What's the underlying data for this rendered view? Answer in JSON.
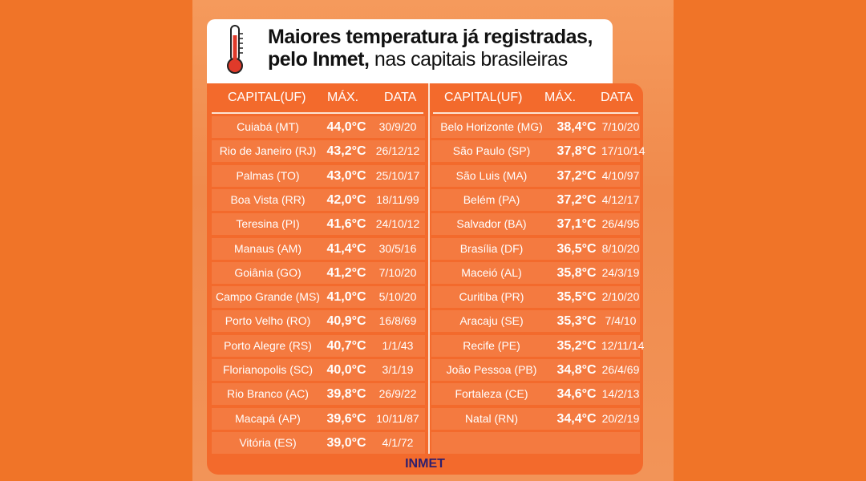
{
  "title": {
    "line1_bold": "Maiores temperatura já registradas,",
    "line2_bold": "pelo Inmet,",
    "line2_rest": " nas capitais brasileiras"
  },
  "headers": {
    "capital": "CAPITAL(UF)",
    "max": "MÁX.",
    "date": "DATA"
  },
  "left_rows": [
    {
      "capital": "Cuiabá (MT)",
      "max": "44,0°C",
      "date": "30/9/20"
    },
    {
      "capital": "Rio de Janeiro (RJ)",
      "max": "43,2°C",
      "date": "26/12/12"
    },
    {
      "capital": "Palmas (TO)",
      "max": "43,0°C",
      "date": "25/10/17"
    },
    {
      "capital": "Boa Vista (RR)",
      "max": "42,0°C",
      "date": "18/11/99"
    },
    {
      "capital": "Teresina (PI)",
      "max": "41,6°C",
      "date": "24/10/12"
    },
    {
      "capital": "Manaus (AM)",
      "max": "41,4°C",
      "date": "30/5/16"
    },
    {
      "capital": "Goiânia (GO)",
      "max": "41,2°C",
      "date": "7/10/20"
    },
    {
      "capital": "Campo Grande (MS)",
      "max": "41,0°C",
      "date": "5/10/20"
    },
    {
      "capital": "Porto Velho (RO)",
      "max": "40,9°C",
      "date": "16/8/69"
    },
    {
      "capital": "Porto Alegre (RS)",
      "max": "40,7°C",
      "date": "1/1/43"
    },
    {
      "capital": "Florianopolis (SC)",
      "max": "40,0°C",
      "date": "3/1/19"
    },
    {
      "capital": "Rio Branco (AC)",
      "max": "39,8°C",
      "date": "26/9/22"
    },
    {
      "capital": "Macapá (AP)",
      "max": "39,6°C",
      "date": "10/11/87"
    },
    {
      "capital": "Vitória (ES)",
      "max": "39,0°C",
      "date": "4/1/72"
    }
  ],
  "right_rows": [
    {
      "capital": "Belo Horizonte (MG)",
      "max": "38,4°C",
      "date": "7/10/20"
    },
    {
      "capital": "São Paulo (SP)",
      "max": "37,8°C",
      "date": "17/10/14"
    },
    {
      "capital": "São Luis (MA)",
      "max": "37,2°C",
      "date": "4/10/97"
    },
    {
      "capital": "Belém (PA)",
      "max": "37,2°C",
      "date": "4/12/17"
    },
    {
      "capital": "Salvador (BA)",
      "max": "37,1°C",
      "date": "26/4/95"
    },
    {
      "capital": "Brasília (DF)",
      "max": "36,5°C",
      "date": "8/10/20"
    },
    {
      "capital": "Maceió (AL)",
      "max": "35,8°C",
      "date": "24/3/19"
    },
    {
      "capital": "Curitiba (PR)",
      "max": "35,5°C",
      "date": "2/10/20"
    },
    {
      "capital": "Aracaju (SE)",
      "max": "35,3°C",
      "date": "7/4/10"
    },
    {
      "capital": "Recife (PE)",
      "max": "35,2°C",
      "date": "12/11/14"
    },
    {
      "capital": "João Pessoa (PB)",
      "max": "34,8°C",
      "date": "26/4/69"
    },
    {
      "capital": "Fortaleza (CE)",
      "max": "34,6°C",
      "date": "14/2/13"
    },
    {
      "capital": "Natal (RN)",
      "max": "34,4°C",
      "date": "20/2/19"
    },
    {
      "capital": "",
      "max": "",
      "date": ""
    }
  ],
  "footer": "INMET",
  "icons": {
    "title": "thermometer-icon"
  },
  "colors": {
    "background": "#f07428",
    "table": "#f36a2c",
    "row": "#f47a40",
    "footer_text": "#2e1f6e",
    "thermometer": "#e03a2a"
  }
}
